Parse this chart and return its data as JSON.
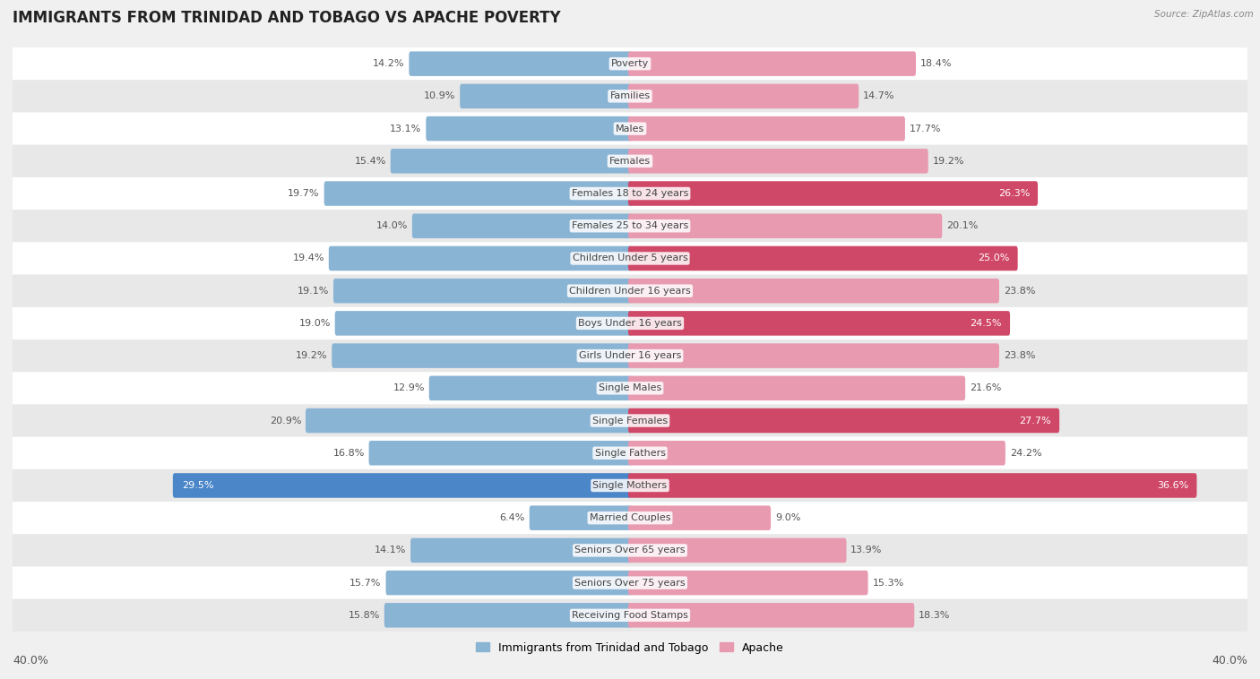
{
  "title": "IMMIGRANTS FROM TRINIDAD AND TOBAGO VS APACHE POVERTY",
  "source": "Source: ZipAtlas.com",
  "categories": [
    "Poverty",
    "Families",
    "Males",
    "Females",
    "Females 18 to 24 years",
    "Females 25 to 34 years",
    "Children Under 5 years",
    "Children Under 16 years",
    "Boys Under 16 years",
    "Girls Under 16 years",
    "Single Males",
    "Single Females",
    "Single Fathers",
    "Single Mothers",
    "Married Couples",
    "Seniors Over 65 years",
    "Seniors Over 75 years",
    "Receiving Food Stamps"
  ],
  "left_values": [
    14.2,
    10.9,
    13.1,
    15.4,
    19.7,
    14.0,
    19.4,
    19.1,
    19.0,
    19.2,
    12.9,
    20.9,
    16.8,
    29.5,
    6.4,
    14.1,
    15.7,
    15.8
  ],
  "right_values": [
    18.4,
    14.7,
    17.7,
    19.2,
    26.3,
    20.1,
    25.0,
    23.8,
    24.5,
    23.8,
    21.6,
    27.7,
    24.2,
    36.6,
    9.0,
    13.9,
    15.3,
    18.3
  ],
  "left_color": "#8ab4d4",
  "right_color": "#e89ab0",
  "left_highlight_color": "#4a86c8",
  "right_highlight_color": "#d04868",
  "row_colors": [
    "#f0f0f0",
    "#fafafa"
  ],
  "axis_max": 40.0,
  "left_label": "Immigrants from Trinidad and Tobago",
  "right_label": "Apache",
  "bg_color": "#f0f0f0",
  "title_fontsize": 12,
  "label_fontsize": 8,
  "value_fontsize": 8,
  "bar_height": 0.52,
  "highlighted_right": [
    "Females 18 to 24 years",
    "Single Females",
    "Children Under 5 years",
    "Boys Under 16 years",
    "Single Mothers"
  ],
  "highlighted_left": [
    "Single Mothers"
  ]
}
